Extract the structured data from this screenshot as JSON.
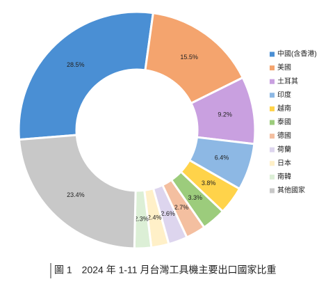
{
  "chart_data": {
    "type": "donut",
    "title": "圖 1　2024 年 1-11 月台灣工具機主要出口國家比重",
    "categories": [
      "中國(含香港)",
      "美國",
      "土耳其",
      "印度",
      "越南",
      "泰國",
      "德國",
      "荷蘭",
      "日本",
      "南韓",
      "其他國家"
    ],
    "values": [
      28.5,
      15.5,
      9.2,
      6.4,
      3.8,
      3.3,
      2.7,
      2.6,
      2.4,
      2.3,
      23.4
    ],
    "value_labels": [
      "28.5%",
      "15.5%",
      "9.2%",
      "6.4%",
      "3.8%",
      "3.3%",
      "2.7%",
      "2.6%",
      "2.4%",
      "2.3%",
      "23.4%"
    ],
    "colors": [
      "#4a8fd4",
      "#f4a46e",
      "#c9a0e0",
      "#8db8e4",
      "#ffd34a",
      "#9ccc7c",
      "#f4bfa0",
      "#ddd5ee",
      "#fff0c8",
      "#dcefd6",
      "#c8c8c8"
    ],
    "legend": "right"
  }
}
